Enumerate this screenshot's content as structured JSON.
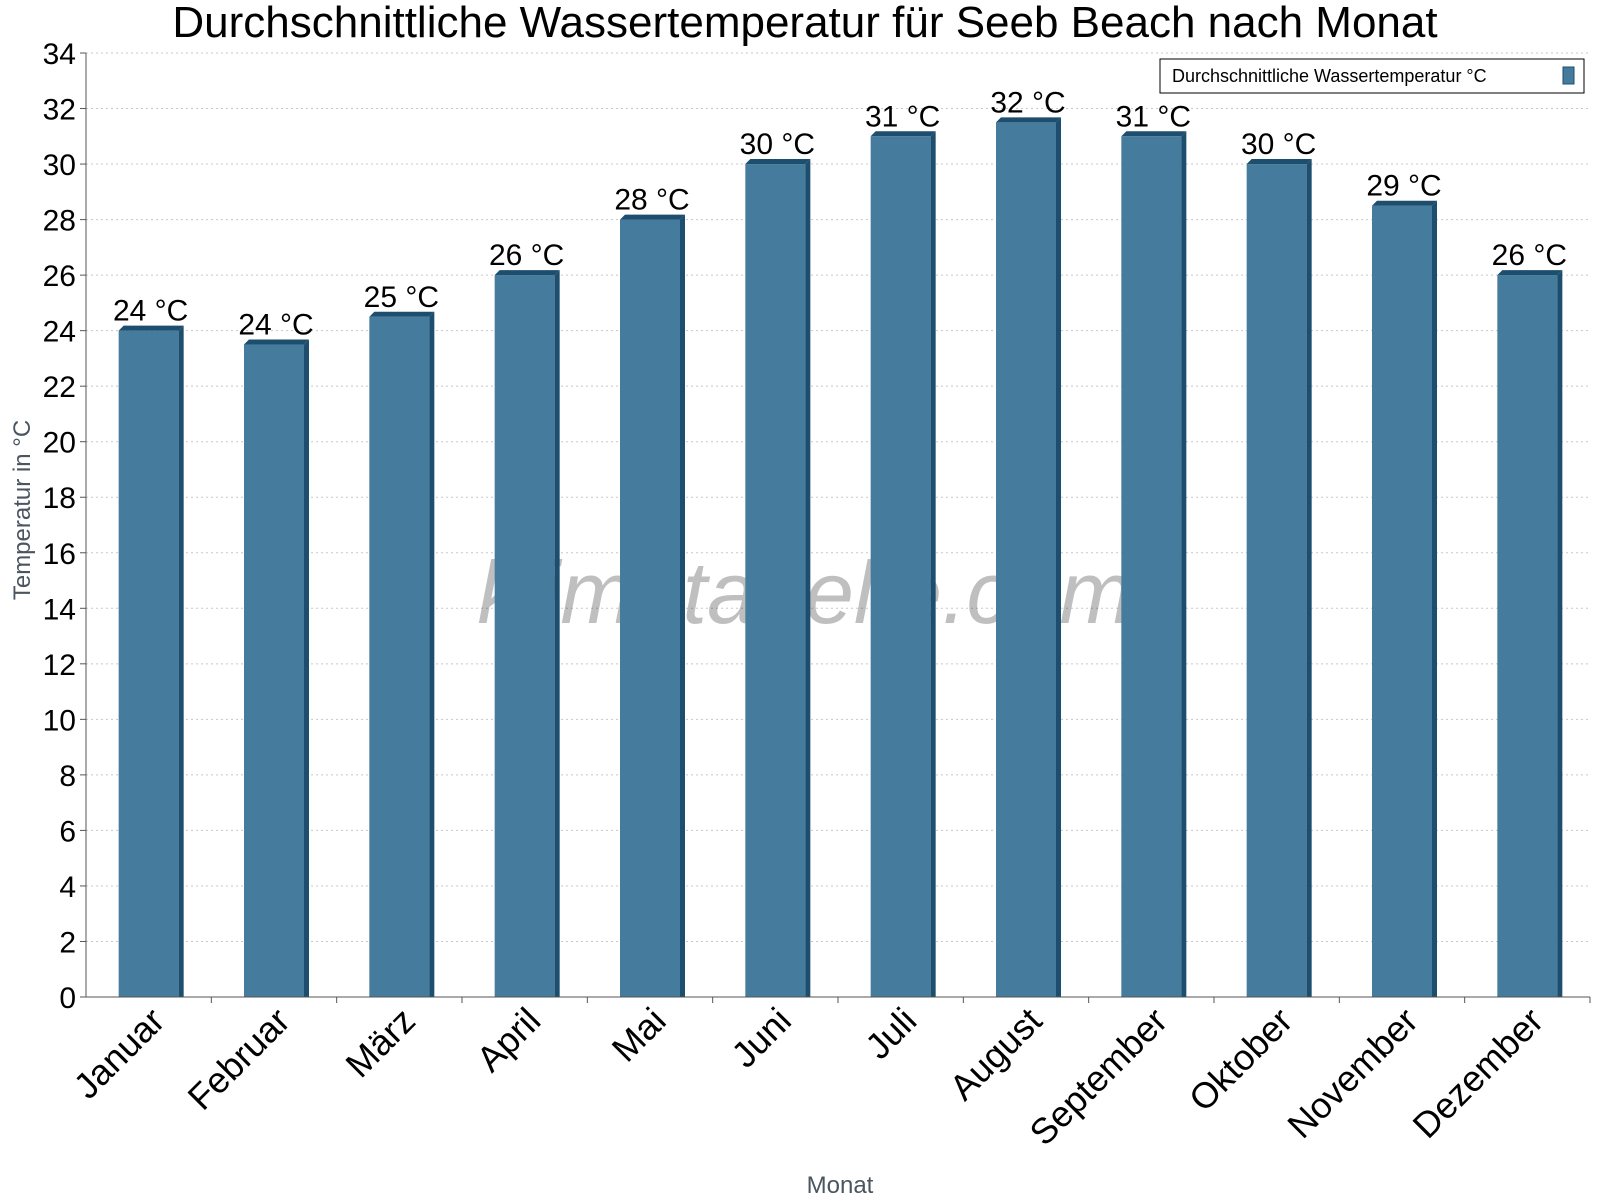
{
  "chart_data": {
    "type": "bar",
    "title": "Durchschnittliche Wassertemperatur für Seeb Beach nach Monat",
    "xlabel": "Monat",
    "ylabel": "Temperatur in °C",
    "ylim": [
      0,
      34
    ],
    "yticks": [
      0,
      2,
      4,
      6,
      8,
      10,
      12,
      14,
      16,
      18,
      20,
      22,
      24,
      26,
      28,
      30,
      32,
      34
    ],
    "grid": true,
    "legend_position": "top-right",
    "categories": [
      "Januar",
      "Februar",
      "März",
      "April",
      "Mai",
      "Juni",
      "Juli",
      "August",
      "September",
      "Oktober",
      "November",
      "Dezember"
    ],
    "series": [
      {
        "name": "Durchschnittliche Wassertemperatur °C",
        "values": [
          24,
          23.5,
          24.5,
          26,
          28,
          30,
          31,
          31.5,
          31,
          30,
          28.5,
          26
        ],
        "labels": [
          "24 °C",
          "24 °C",
          "25 °C",
          "26 °C",
          "28 °C",
          "30 °C",
          "31 °C",
          "32 °C",
          "31 °C",
          "30 °C",
          "29 °C",
          "26 °C"
        ],
        "color": "#457b9d",
        "edge_color": "#1d4e6e"
      }
    ],
    "watermark": "klimatabelle.com"
  }
}
